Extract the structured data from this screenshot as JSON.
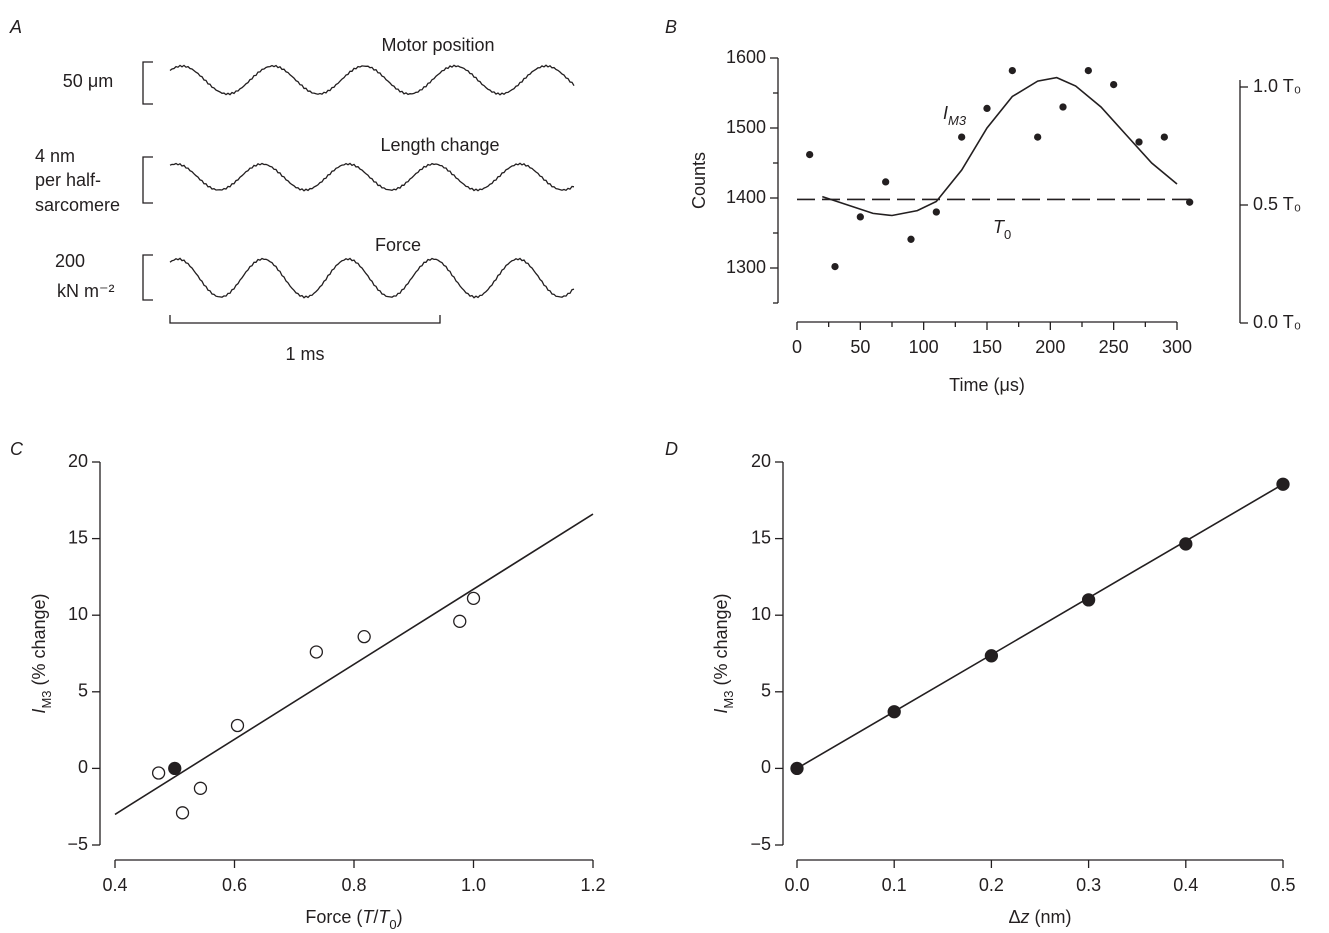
{
  "chart_data": [
    {
      "type": "traces",
      "panel": "A",
      "traces": [
        {
          "name": "Motor position",
          "scale_label": [
            "50 μm"
          ]
        },
        {
          "name": "Length change",
          "scale_label": [
            "4 nm",
            "per half-",
            "sarcomere"
          ]
        },
        {
          "name": "Force",
          "scale_label": [
            "200",
            "kN m⁻²"
          ]
        }
      ],
      "time_scale": "1 ms"
    },
    {
      "type": "scatter",
      "panel": "B",
      "x_label": [
        {
          "text": "Time (μs)"
        }
      ],
      "y_label": [
        {
          "text": "Counts"
        }
      ],
      "xlim": [
        0,
        300
      ],
      "xticks": [
        0,
        50,
        100,
        150,
        200,
        250,
        300
      ],
      "xminorticks": [
        25,
        75,
        125,
        175,
        225,
        275
      ],
      "ylim": [
        1250,
        1600
      ],
      "yticks": [
        1300,
        1400,
        1500,
        1600
      ],
      "yminorticks": [
        1250,
        1350,
        1450,
        1550
      ],
      "y2lim": [
        0,
        1
      ],
      "y2ticks": [
        {
          "value": 0,
          "label": "0.0 T₀"
        },
        {
          "value": 0.5,
          "label": "0.5 T₀"
        },
        {
          "value": 1,
          "label": "1.0 T₀"
        }
      ],
      "annotations": [
        [
          {
            "text": "I",
            "italic": true
          },
          {
            "text": "M3",
            "italic": true,
            "sub": true
          }
        ],
        [
          {
            "text": "T",
            "italic": true
          },
          {
            "text": "0",
            "sub": true
          }
        ]
      ],
      "series": [
        {
          "mode": "markers",
          "color": "#231f20",
          "fill": "#231f20",
          "size": 3,
          "x": [
            10,
            30,
            50,
            70,
            90,
            110,
            130,
            150,
            170,
            190,
            210,
            230,
            250,
            270,
            290,
            310
          ],
          "values": [
            1462,
            1302,
            1373,
            1423,
            1341,
            1380,
            1487,
            1528,
            1582,
            1487,
            1530,
            1582,
            1562,
            1480,
            1487,
            1394
          ]
        },
        {
          "mode": "line",
          "color": "#231f20",
          "x": [
            20,
            40,
            60,
            75,
            95,
            110,
            130,
            150,
            170,
            190,
            205,
            220,
            240,
            260,
            280,
            300
          ],
          "values": [
            1402,
            1390,
            1378,
            1375,
            1382,
            1395,
            1440,
            1500,
            1545,
            1567,
            1572,
            1560,
            1530,
            1490,
            1450,
            1420
          ]
        },
        {
          "mode": "line",
          "dash": true,
          "color": "#231f20",
          "x": [
            0,
            310
          ],
          "values": [
            1398,
            1398
          ]
        }
      ]
    },
    {
      "type": "scatter",
      "panel": "C",
      "x_label": [
        {
          "text": "Force ("
        },
        {
          "text": "T",
          "italic": true
        },
        {
          "text": "/"
        },
        {
          "text": "T",
          "italic": true
        },
        {
          "text": "0",
          "sub": true
        },
        {
          "text": ")"
        }
      ],
      "y_label": [
        {
          "text": "I",
          "italic": true
        },
        {
          "text": "M3",
          "sub": true
        },
        {
          "text": " (% change)"
        }
      ],
      "xlim": [
        0.4,
        1.2
      ],
      "xticks": [
        0.4,
        0.6,
        0.8,
        {
          "value": 1,
          "label": "1.0"
        },
        1.2
      ],
      "ylim": [
        -5,
        20
      ],
      "yticks": [
        {
          "value": -5,
          "label": "−5"
        },
        0,
        5,
        10,
        15,
        20
      ],
      "series": [
        {
          "mode": "line",
          "color": "#231f20",
          "x": [
            0.4,
            1.2
          ],
          "values": [
            -3.0,
            16.6
          ]
        },
        {
          "mode": "markers",
          "color": "#231f20",
          "fill": "none",
          "size": 6,
          "x": [
            0.473,
            0.513,
            0.543,
            0.605,
            0.737,
            0.817,
            0.977,
            1.0
          ],
          "values": [
            -0.3,
            -2.9,
            -1.3,
            2.8,
            7.6,
            8.6,
            9.6,
            11.1
          ]
        },
        {
          "mode": "markers",
          "color": "#231f20",
          "fill": "#231f20",
          "size": 6,
          "x": [
            0.5
          ],
          "values": [
            0
          ]
        }
      ]
    },
    {
      "type": "scatter",
      "panel": "D",
      "x_label": [
        {
          "text": "Δ"
        },
        {
          "text": "z",
          "italic": true
        },
        {
          "text": " (nm)"
        }
      ],
      "y_label": [
        {
          "text": "I",
          "italic": true
        },
        {
          "text": "M3",
          "sub": true
        },
        {
          "text": " (% change)"
        }
      ],
      "xlim": [
        0,
        0.5
      ],
      "xticks": [
        {
          "value": 0,
          "label": "0.0"
        },
        0.1,
        0.2,
        0.3,
        0.4,
        0.5
      ],
      "ylim": [
        -5,
        20
      ],
      "yticks": [
        {
          "value": -5,
          "label": "−5"
        },
        0,
        5,
        10,
        15,
        20
      ],
      "series": [
        {
          "mode": "line",
          "color": "#231f20",
          "x": [
            0,
            0.5
          ],
          "values": [
            0,
            18.55
          ]
        },
        {
          "mode": "markers",
          "color": "#231f20",
          "fill": "#231f20",
          "size": 6,
          "x": [
            0,
            0.1,
            0.2,
            0.3,
            0.4,
            0.5
          ],
          "values": [
            0,
            3.7,
            7.35,
            11.0,
            14.65,
            18.55
          ]
        }
      ]
    }
  ]
}
